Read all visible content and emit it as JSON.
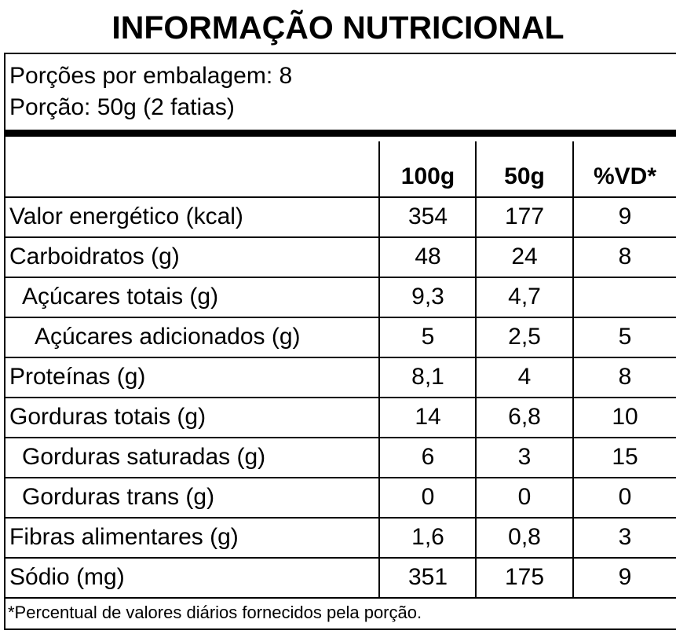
{
  "header": {
    "title": "INFORMAÇÃO NUTRICIONAL",
    "servings": "Porções por embalagem: 8",
    "portion": "Porção: 50g (2 fatias)"
  },
  "table": {
    "columns": [
      "100g",
      "50g",
      "%VD*"
    ],
    "rows": [
      [
        "Valor energético (kcal)",
        "354",
        "177",
        "9"
      ],
      [
        "Carboidratos (g)",
        "48",
        "24",
        "8"
      ],
      [
        "Açúcares totais (g)",
        "9,3",
        "4,7",
        null
      ],
      [
        "Açúcares adicionados (g)",
        "5",
        "2,5",
        "5"
      ],
      [
        "Proteínas (g)",
        "8,1",
        "4",
        "8"
      ],
      [
        "Gorduras totais (g)",
        "14",
        "6,8",
        "10"
      ],
      [
        "Gorduras saturadas (g)",
        "6",
        "3",
        "15"
      ],
      [
        "Gorduras trans (g)",
        "0",
        "0",
        "0"
      ],
      [
        "Fibras alimentares (g)",
        "1,6",
        "0,8",
        "3"
      ],
      [
        "Sódio (mg)",
        "351",
        "175",
        "9"
      ]
    ]
  },
  "footnote": "*Percentual de valores diários fornecidos pela porção."
}
